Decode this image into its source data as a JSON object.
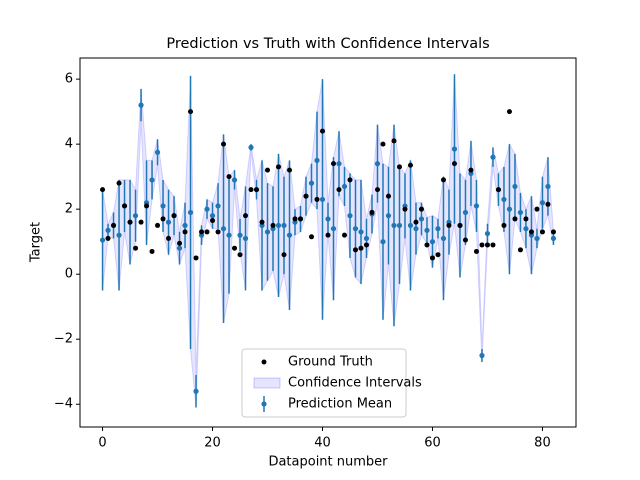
{
  "chart_data": {
    "type": "errorbar",
    "title": "Prediction vs Truth with Confidence Intervals",
    "xlabel": "Datapoint number",
    "ylabel": "Target",
    "x": [
      0,
      1,
      2,
      3,
      4,
      5,
      6,
      7,
      8,
      9,
      10,
      11,
      12,
      13,
      14,
      15,
      16,
      17,
      18,
      19,
      20,
      21,
      22,
      23,
      24,
      25,
      26,
      27,
      28,
      29,
      30,
      31,
      32,
      33,
      34,
      35,
      36,
      37,
      38,
      39,
      40,
      41,
      42,
      43,
      44,
      45,
      46,
      47,
      48,
      49,
      50,
      51,
      52,
      53,
      54,
      55,
      56,
      57,
      58,
      59,
      60,
      61,
      62,
      63,
      64,
      65,
      66,
      67,
      68,
      69,
      70,
      71,
      72,
      73,
      74,
      75,
      76,
      77,
      78,
      79,
      80,
      81,
      82
    ],
    "series": [
      {
        "name": "Ground Truth",
        "color": "#000000",
        "values": [
          2.6,
          1.1,
          1.5,
          2.8,
          2.1,
          1.6,
          0.8,
          1.6,
          2.1,
          0.7,
          1.5,
          1.7,
          1.1,
          1.8,
          0.95,
          1.3,
          5.0,
          0.5,
          1.3,
          1.3,
          1.65,
          1.3,
          4.0,
          3.0,
          0.8,
          0.6,
          1.8,
          2.6,
          2.6,
          1.6,
          3.2,
          1.5,
          3.3,
          0.6,
          3.2,
          1.7,
          1.7,
          2.4,
          1.15,
          2.3,
          4.4,
          1.2,
          3.4,
          2.6,
          1.2,
          2.9,
          0.75,
          0.8,
          0.9,
          1.9,
          2.6,
          4.0,
          2.4,
          4.1,
          3.3,
          2.0,
          3.35,
          1.6,
          2.0,
          0.9,
          0.5,
          0.6,
          2.9,
          1.5,
          3.4,
          1.5,
          1.05,
          3.2,
          0.7,
          0.9,
          0.9,
          0.9,
          2.6,
          1.5,
          5.0,
          1.7,
          0.75,
          1.7,
          1.3,
          2.0,
          1.3,
          2.15,
          1.3
        ]
      },
      {
        "name": "Prediction Mean",
        "color": "#1f77b4",
        "values": [
          1.05,
          1.35,
          1.5,
          1.2,
          2.1,
          1.6,
          1.8,
          5.2,
          2.2,
          2.9,
          3.75,
          2.1,
          1.6,
          1.8,
          0.8,
          1.5,
          1.9,
          -3.6,
          1.2,
          2.0,
          1.8,
          2.1,
          1.4,
          1.2,
          2.9,
          1.2,
          1.1,
          3.9,
          2.6,
          1.5,
          1.3,
          1.4,
          1.5,
          1.5,
          1.2,
          1.6,
          1.7,
          2.4,
          2.8,
          3.5,
          2.3,
          1.7,
          1.4,
          3.4,
          2.7,
          1.8,
          1.4,
          1.3,
          1.1,
          1.85,
          3.4,
          1.0,
          1.8,
          1.5,
          1.5,
          2.1,
          1.5,
          1.4,
          1.7,
          1.35,
          1.0,
          1.4,
          1.1,
          1.6,
          3.85,
          1.5,
          1.9,
          3.1,
          2.1,
          -2.5,
          1.25,
          3.6,
          2.6,
          2.3,
          2.0,
          2.7,
          1.9,
          1.4,
          1.2,
          1.1,
          2.2,
          2.7,
          1.1
        ],
        "errors": [
          1.55,
          0.2,
          0.4,
          1.7,
          0.8,
          1.3,
          0.8,
          0.5,
          1.3,
          0.6,
          0.4,
          0.8,
          1.0,
          0.6,
          0.5,
          0.7,
          4.2,
          0.5,
          0.3,
          0.3,
          0.4,
          0.7,
          2.9,
          1.8,
          0.3,
          0.5,
          1.6,
          0.1,
          0.3,
          2.0,
          1.5,
          1.3,
          2.2,
          1.5,
          2.3,
          0.4,
          0.4,
          0.6,
          0.6,
          1.5,
          3.7,
          0.5,
          2.2,
          1.0,
          0.6,
          1.3,
          1.5,
          1.6,
          0.6,
          0.6,
          1.2,
          2.4,
          1.5,
          3.1,
          1.8,
          1.0,
          2.0,
          0.8,
          0.5,
          0.4,
          0.8,
          0.3,
          1.9,
          1.0,
          2.3,
          1.6,
          1.0,
          1.0,
          0.8,
          0.2,
          0.3,
          0.3,
          0.5,
          1.0,
          2.0,
          1.0,
          0.6,
          0.6,
          1.2,
          0.3,
          0.8,
          0.9,
          0.2
        ]
      }
    ],
    "band": {
      "name": "Confidence Intervals",
      "color": "#0000ff"
    },
    "xlim": [
      -4.1,
      86.1
    ],
    "ylim": [
      -4.7,
      6.65
    ],
    "xticks": [
      0,
      20,
      40,
      60,
      80
    ],
    "yticks": [
      {
        "value": -4,
        "label": "−4"
      },
      {
        "value": -2,
        "label": "−2"
      },
      0,
      2,
      4,
      6
    ],
    "legend": "lower center"
  }
}
